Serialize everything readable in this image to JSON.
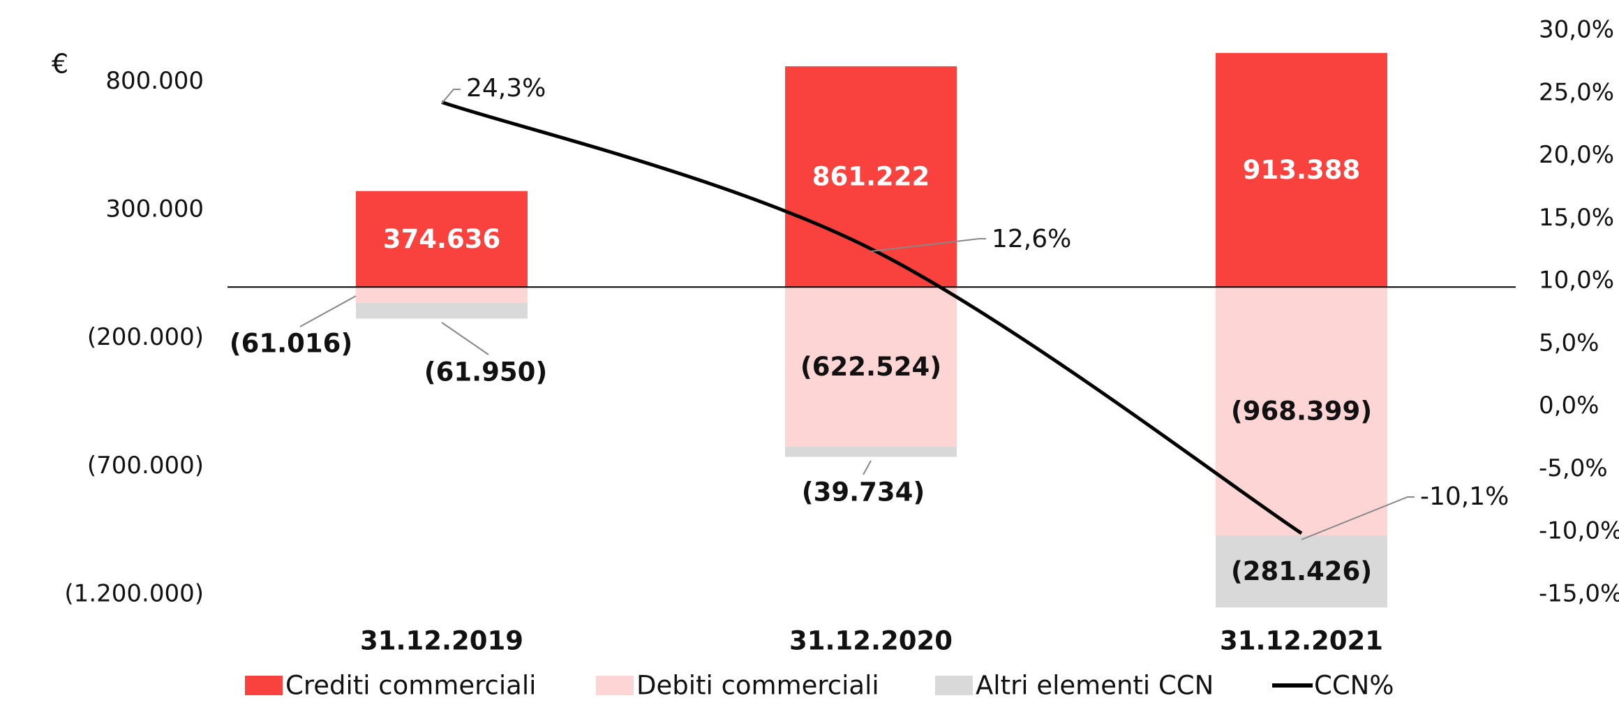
{
  "chart_data": {
    "type": "bar",
    "y_unit": "€",
    "categories": [
      "31.12.2019",
      "31.12.2020",
      "31.12.2021"
    ],
    "ylim": [
      -1200000,
      1000000
    ],
    "yticks": [
      {
        "value": 800000,
        "label": "800.000"
      },
      {
        "value": 300000,
        "label": "300.000"
      },
      {
        "value": -200000,
        "label": "(200.000)"
      },
      {
        "value": -700000,
        "label": "(700.000)"
      },
      {
        "value": -1200000,
        "label": "(1.200.000)"
      }
    ],
    "y2lim": [
      -15,
      30
    ],
    "y2ticks": [
      {
        "value": 30,
        "label": "30,0%"
      },
      {
        "value": 25,
        "label": "25,0%"
      },
      {
        "value": 20,
        "label": "20,0%"
      },
      {
        "value": 15,
        "label": "15,0%"
      },
      {
        "value": 10,
        "label": "10,0%"
      },
      {
        "value": 5,
        "label": "5,0%"
      },
      {
        "value": 0,
        "label": "0,0%"
      },
      {
        "value": -5,
        "label": "-5,0%"
      },
      {
        "value": -10,
        "label": "-10,0%"
      },
      {
        "value": -15,
        "label": "-15,0%"
      }
    ],
    "stacked": true,
    "series": [
      {
        "name": "Crediti commerciali",
        "type": "bar",
        "color": "#f9423d",
        "values": [
          374636,
          861222,
          913388
        ],
        "value_labels": [
          "374.636",
          "861.222",
          "913.388"
        ]
      },
      {
        "name": "Debiti commerciali",
        "type": "bar",
        "color": "#fcd5d4",
        "values": [
          -61016,
          -622524,
          -968399
        ],
        "value_labels": [
          "(61.016)",
          "(622.524)",
          "(968.399)"
        ]
      },
      {
        "name": "Altri elementi CCN",
        "type": "bar",
        "color": "#d9d9d9",
        "values": [
          -61950,
          -39734,
          -281426
        ],
        "value_labels": [
          "(61.950)",
          "(39.734)",
          "(281.426)"
        ]
      },
      {
        "name": "CCN%",
        "type": "line",
        "axis": "y2",
        "color": "#000000",
        "values": [
          24.3,
          12.6,
          -10.1
        ],
        "value_labels": [
          "24,3%",
          "12,6%",
          "-10,1%"
        ]
      }
    ]
  }
}
